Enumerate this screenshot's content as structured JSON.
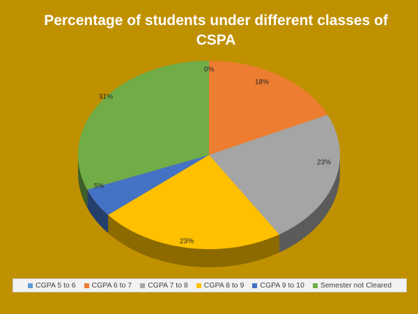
{
  "chart_data": {
    "type": "pie",
    "title": "Percentage of students under different classes of CSPA",
    "title_lines": [
      "Percentage of students under different classes of",
      "CSPA"
    ],
    "style": "3d",
    "legend_position": "bottom",
    "slices": [
      {
        "label": "CGPA 5 to 6",
        "value": 0,
        "display": "0%",
        "color": "#5b9bd5"
      },
      {
        "label": "CGPA 6 to 7",
        "value": 18,
        "display": "18%",
        "color": "#ed7d31"
      },
      {
        "label": "CGPA 7 to 8",
        "value": 23,
        "display": "23%",
        "color": "#a5a5a5"
      },
      {
        "label": "CGPA 8 to 9",
        "value": 23,
        "display": "23%",
        "color": "#ffc000"
      },
      {
        "label": "CGPA 9 to 10",
        "value": 5,
        "display": "5%",
        "color": "#4472c4"
      },
      {
        "label": "Semester not Cleared",
        "value": 31,
        "display": "31%",
        "color": "#70ad47"
      }
    ]
  }
}
